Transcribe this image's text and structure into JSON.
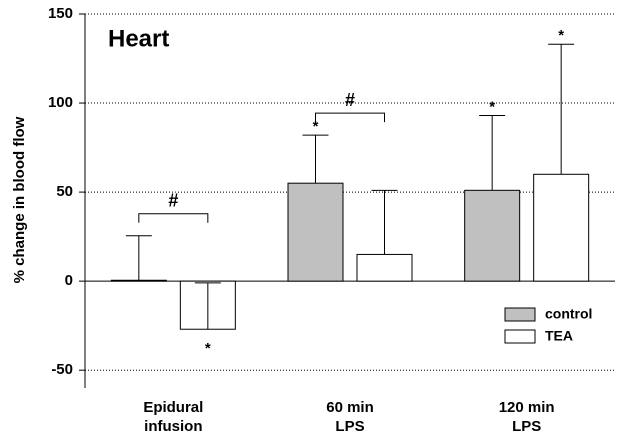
{
  "chart_data": {
    "type": "bar",
    "title": "Heart",
    "y_label": "% change in blood flow",
    "categories": [
      "Epidural\ninfusion",
      "60 min\nLPS",
      "120 min\nLPS"
    ],
    "series": [
      {
        "name": "control",
        "color": "#c0c0c0",
        "values": [
          0.5,
          55,
          51
        ],
        "errors": [
          25,
          27,
          42
        ]
      },
      {
        "name": "TEA",
        "color": "#ffffff",
        "values": [
          -27,
          15,
          60
        ],
        "errors": [
          26,
          36,
          73
        ]
      }
    ],
    "ylim": [
      -60,
      150
    ],
    "yticks": [
      -50,
      0,
      50,
      100,
      150
    ],
    "grid": true,
    "legend": "lower right",
    "asterisks": [
      {
        "text": "*",
        "series": 0,
        "index": 1
      },
      {
        "text": "*",
        "series": 0,
        "index": 2
      },
      {
        "text": "*",
        "series": 1,
        "index": 0
      },
      {
        "text": "*",
        "series": 1,
        "index": 2
      }
    ],
    "comparisons": [
      {
        "label": "#",
        "index": 0
      },
      {
        "label": "#",
        "index": 1
      }
    ]
  }
}
